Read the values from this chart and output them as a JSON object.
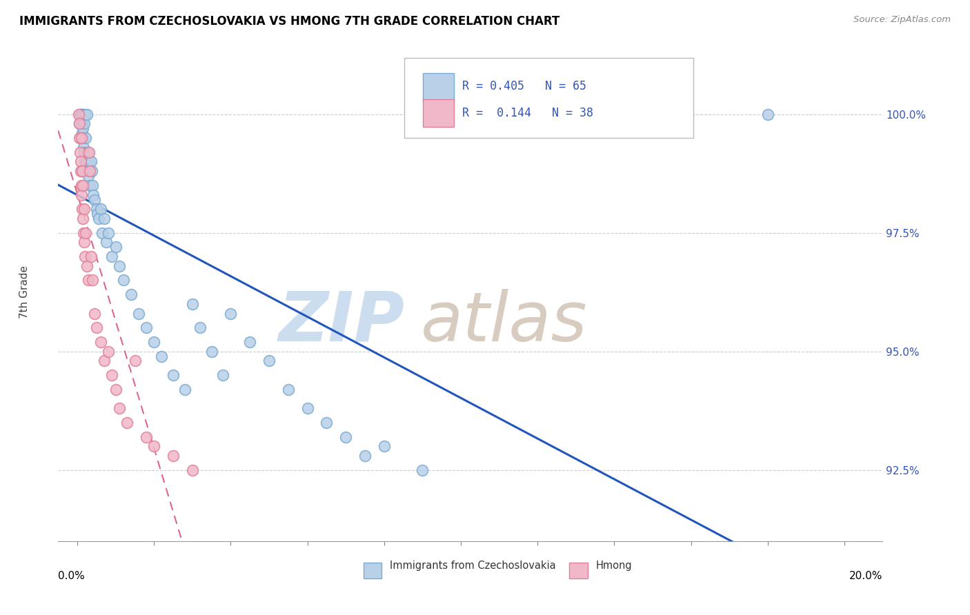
{
  "title": "IMMIGRANTS FROM CZECHOSLOVAKIA VS HMONG 7TH GRADE CORRELATION CHART",
  "source": "Source: ZipAtlas.com",
  "ylabel": "7th Grade",
  "ylim": [
    91.0,
    101.5
  ],
  "xlim": [
    -0.5,
    21.0
  ],
  "yticks": [
    92.5,
    95.0,
    97.5,
    100.0
  ],
  "ytick_labels": [
    "92.5%",
    "95.0%",
    "97.5%",
    "100.0%"
  ],
  "R_blue": 0.405,
  "N_blue": 65,
  "R_pink": 0.144,
  "N_pink": 38,
  "legend_label_blue": "Immigrants from Czechoslovakia",
  "legend_label_pink": "Hmong",
  "blue_fill": "#b8d0e8",
  "blue_edge": "#7aaad0",
  "pink_fill": "#f0b8c8",
  "pink_edge": "#e08098",
  "blue_line_color": "#2255bb",
  "pink_line_color": "#dd6688",
  "watermark_zip_color": "#ccddf0",
  "watermark_atlas_color": "#d8ccc0",
  "grid_color": "#cccccc",
  "tick_label_color": "#3355bb",
  "blue_x": [
    0.05,
    0.07,
    0.08,
    0.09,
    0.1,
    0.1,
    0.1,
    0.12,
    0.12,
    0.13,
    0.14,
    0.15,
    0.15,
    0.16,
    0.17,
    0.18,
    0.2,
    0.2,
    0.22,
    0.23,
    0.25,
    0.25,
    0.27,
    0.28,
    0.3,
    0.32,
    0.35,
    0.38,
    0.4,
    0.42,
    0.45,
    0.5,
    0.52,
    0.55,
    0.6,
    0.65,
    0.7,
    0.75,
    0.8,
    0.9,
    1.0,
    1.1,
    1.2,
    1.4,
    1.6,
    1.8,
    2.0,
    2.2,
    2.5,
    2.8,
    3.0,
    3.2,
    3.5,
    3.8,
    4.0,
    4.5,
    5.0,
    5.5,
    6.0,
    6.5,
    7.0,
    7.5,
    8.0,
    9.0,
    18.0
  ],
  "blue_y": [
    99.8,
    100.0,
    100.0,
    100.0,
    100.0,
    99.9,
    99.5,
    100.0,
    99.8,
    99.6,
    99.7,
    100.0,
    99.5,
    99.3,
    99.8,
    99.2,
    100.0,
    99.0,
    99.5,
    99.0,
    100.0,
    98.8,
    99.2,
    98.7,
    99.0,
    98.5,
    99.0,
    98.8,
    98.5,
    98.3,
    98.2,
    98.0,
    97.9,
    97.8,
    98.0,
    97.5,
    97.8,
    97.3,
    97.5,
    97.0,
    97.2,
    96.8,
    96.5,
    96.2,
    95.8,
    95.5,
    95.2,
    94.9,
    94.5,
    94.2,
    96.0,
    95.5,
    95.0,
    94.5,
    95.8,
    95.2,
    94.8,
    94.2,
    93.8,
    93.5,
    93.2,
    92.8,
    93.0,
    92.5,
    100.0
  ],
  "pink_x": [
    0.04,
    0.05,
    0.06,
    0.07,
    0.08,
    0.09,
    0.1,
    0.1,
    0.11,
    0.12,
    0.13,
    0.14,
    0.15,
    0.16,
    0.17,
    0.18,
    0.2,
    0.22,
    0.25,
    0.28,
    0.3,
    0.32,
    0.35,
    0.4,
    0.45,
    0.5,
    0.6,
    0.7,
    0.8,
    0.9,
    1.0,
    1.1,
    1.3,
    1.5,
    1.8,
    2.0,
    2.5,
    3.0
  ],
  "pink_y": [
    100.0,
    99.8,
    99.5,
    99.2,
    99.0,
    98.8,
    99.5,
    98.5,
    98.3,
    98.8,
    98.0,
    98.5,
    97.8,
    97.5,
    98.0,
    97.3,
    97.0,
    97.5,
    96.8,
    96.5,
    99.2,
    98.8,
    97.0,
    96.5,
    95.8,
    95.5,
    95.2,
    94.8,
    95.0,
    94.5,
    94.2,
    93.8,
    93.5,
    94.8,
    93.2,
    93.0,
    92.8,
    92.5
  ]
}
